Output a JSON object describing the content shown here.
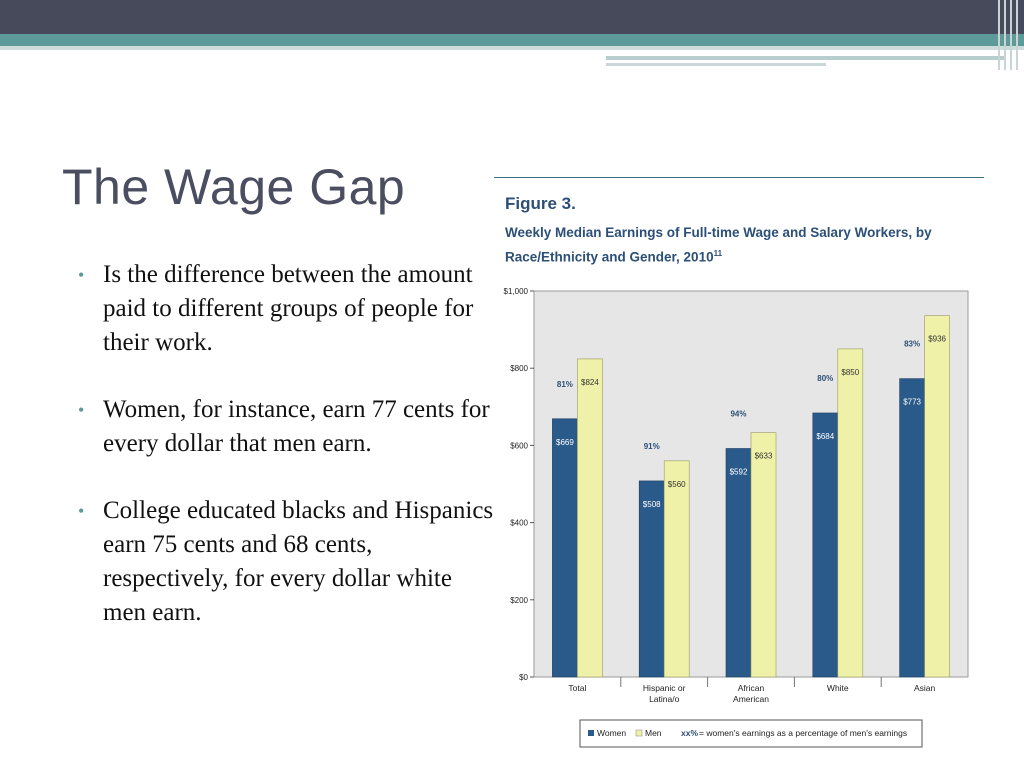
{
  "slide": {
    "title": "The Wage Gap",
    "bullets": [
      "Is the difference between the amount paid to different groups of people for their work.",
      "Women, for instance, earn 77 cents for every dollar that men earn.",
      "College educated blacks and Hispanics earn 75 cents and 68 cents, respectively, for every dollar white men earn."
    ]
  },
  "figure": {
    "number": "Figure 3.",
    "caption": "Weekly Median Earnings of Full-time Wage and Salary Workers, by Race/Ethnicity and Gender, 2010",
    "caption_superscript": "11"
  },
  "colors": {
    "women": "#2a5a8a",
    "men": "#eef1a7",
    "plot_bg": "#e6e6e6",
    "title_text": "#4a4e60",
    "accent": "#5e9a99"
  },
  "chart_data": {
    "type": "bar",
    "categories": [
      [
        "Total"
      ],
      [
        "Hispanic or",
        "Latina/o"
      ],
      [
        "African",
        "American"
      ],
      [
        "White"
      ],
      [
        "Asian"
      ]
    ],
    "series": [
      {
        "name": "Women",
        "values": [
          669,
          508,
          592,
          684,
          773
        ],
        "labels": [
          "$669",
          "$508",
          "$592",
          "$684",
          "$773"
        ]
      },
      {
        "name": "Men",
        "values": [
          824,
          560,
          633,
          850,
          936
        ],
        "labels": [
          "$824",
          "$560",
          "$633",
          "$850",
          "$936"
        ]
      }
    ],
    "percent_labels": [
      "81%",
      "91%",
      "94%",
      "80%",
      "83%"
    ],
    "ylim": [
      0,
      1000
    ],
    "yticks": [
      0,
      200,
      400,
      600,
      800,
      1000
    ],
    "ytick_labels": [
      "$0",
      "$200",
      "$400",
      "$600",
      "$800",
      "$1,000"
    ],
    "legend": {
      "women": "Women",
      "men": "Men",
      "pct_symbol": "xx%",
      "pct_text": "= women's earnings as a percentage of men's earnings"
    }
  }
}
